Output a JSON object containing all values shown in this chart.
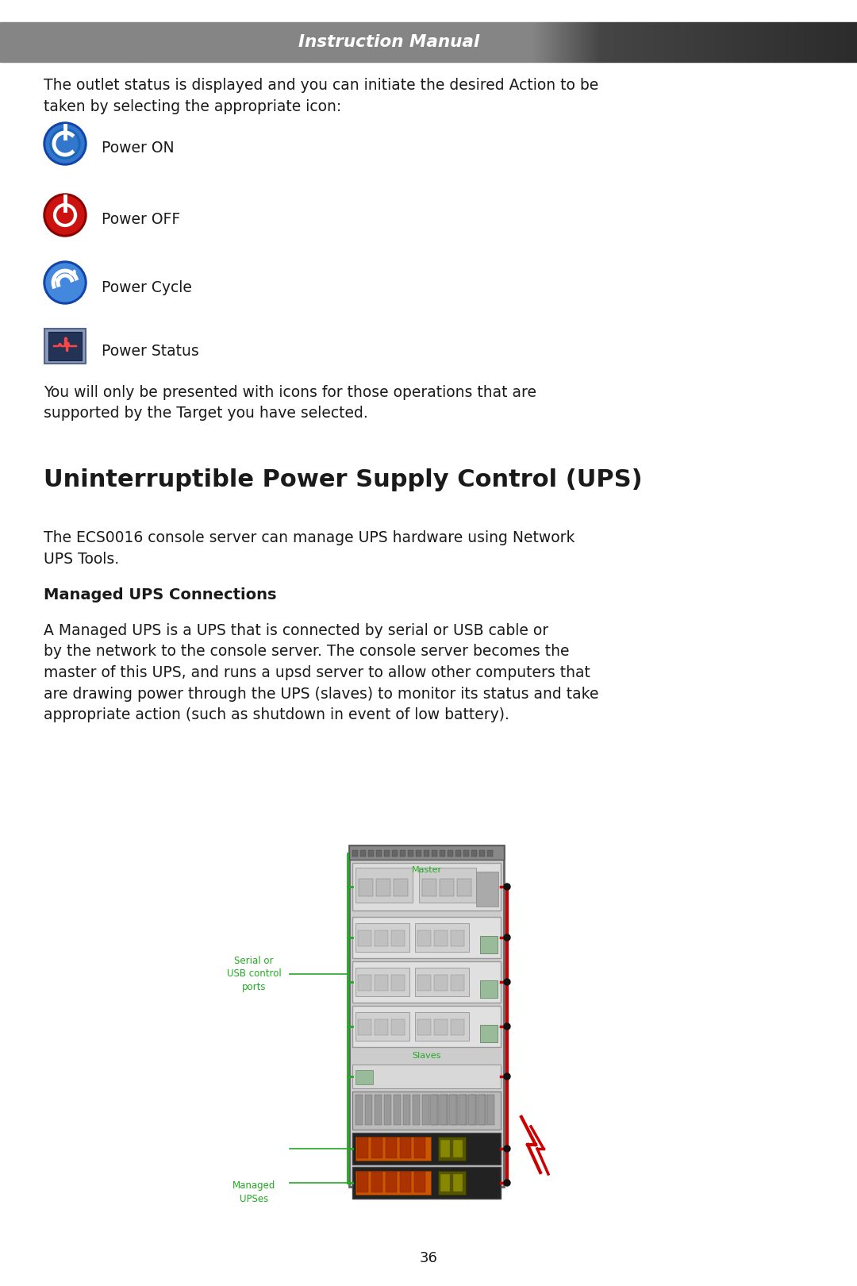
{
  "page_bg": "#ffffff",
  "text_color": "#1a1a1a",
  "header_title": "Instruction Manual",
  "header_text_color": "#ffffff",
  "body_fontsize": 13.5,
  "section_fontsize": 22,
  "subsection_fontsize": 14,
  "para1": "The outlet status is displayed and you can initiate the desired Action to be\ntaken by selecting the appropriate icon:",
  "icon_labels": [
    "Power ON",
    "Power OFF",
    "Power Cycle",
    "Power Status"
  ],
  "para2": "You will only be presented with icons for those operations that are\nsupported by the Target you have selected.",
  "section_title": "Uninterruptible Power Supply Control (UPS)",
  "para3": "The ECS0016 console server can manage UPS hardware using Network\nUPS Tools.",
  "subsection_title": "Managed UPS Connections",
  "para4": "A Managed UPS is a UPS that is connected by serial or USB cable or\nby the network to the console server. The console server becomes the\nmaster of this UPS, and runs a upsd server to allow other computers that\nare drawing power through the UPS (slaves) to monitor its status and take\nappropriate action (such as shutdown in event of low battery).",
  "page_number": "36",
  "diag_serial_label": "Serial or\nUSB control\nports",
  "diag_master_label": "Master",
  "diag_slaves_label": "Slaves",
  "diag_managed_label": "Managed\nUPSes",
  "green": "#22aa22",
  "red": "#cc0000",
  "orange_ups": "#cc6600",
  "rack_gray": "#aaaaaa",
  "rack_dark": "#555555",
  "rack_light": "#cccccc",
  "server_bg": "#dddddd",
  "server_mid": "#bbbbbb"
}
